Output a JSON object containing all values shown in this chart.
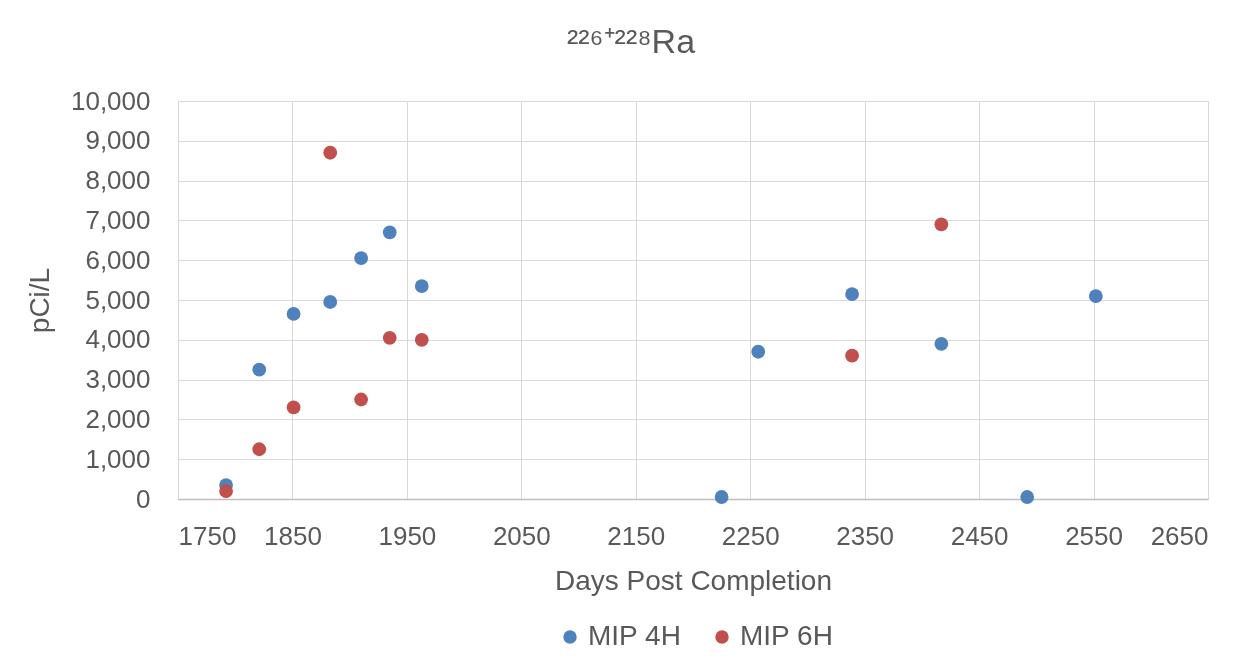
{
  "chart_data": {
    "type": "scatter",
    "title": "²²⁶⁺²²⁸Ra",
    "xlabel": "Days Post Completion",
    "ylabel": "pCi/L",
    "series": [
      {
        "name": "MIP 4H",
        "color": "#4f81bd",
        "x": [
          1792,
          1821,
          1851,
          1883,
          1910,
          1935,
          1963,
          2225,
          2257,
          2339,
          2417,
          2492,
          2552
        ],
        "values": [
          350,
          3250,
          4650,
          4950,
          6050,
          6700,
          5350,
          50,
          3700,
          5150,
          3900,
          50,
          5100
        ]
      },
      {
        "name": "MIP 6H",
        "color": "#c0504d",
        "x": [
          1792,
          1821,
          1851,
          1883,
          1910,
          1935,
          1963,
          2339,
          2417
        ],
        "values": [
          200,
          1250,
          2300,
          8700,
          2500,
          4050,
          4000,
          3600,
          6900
        ]
      }
    ],
    "xlim": [
      1750,
      2650
    ],
    "xticks": [
      1750,
      1850,
      1950,
      2050,
      2150,
      2250,
      2350,
      2450,
      2550,
      2650
    ],
    "ylim": [
      0,
      10000
    ],
    "yticks": [
      0,
      {
        "value": 1000,
        "label": "1,000"
      },
      {
        "value": 2000,
        "label": "2,000"
      },
      {
        "value": 3000,
        "label": "3,000"
      },
      {
        "value": 4000,
        "label": "4,000"
      },
      {
        "value": 5000,
        "label": "5,000"
      },
      {
        "value": 6000,
        "label": "6,000"
      },
      {
        "value": 7000,
        "label": "7,000"
      },
      {
        "value": 8000,
        "label": "8,000"
      },
      {
        "value": 9000,
        "label": "9,000"
      },
      {
        "value": 10000,
        "label": "10,000"
      }
    ],
    "grid": true,
    "legend": "bottom",
    "marker": "circle"
  }
}
